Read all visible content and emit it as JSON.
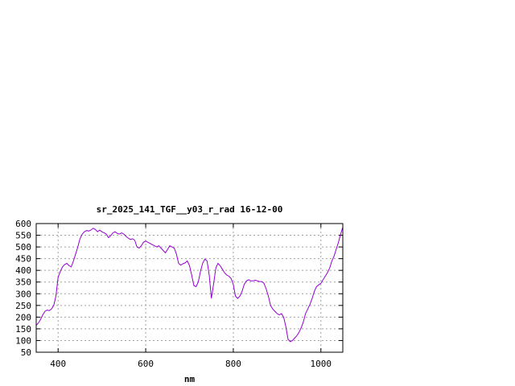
{
  "chart_data": {
    "type": "line",
    "title": "sr_2025_141_TGF__y03_r_rad 16-12-00",
    "xlabel": "nm",
    "ylabel": "",
    "xlim": [
      350,
      1050
    ],
    "ylim": [
      50,
      600
    ],
    "xticks": [
      400,
      600,
      800,
      1000
    ],
    "yticks": [
      50,
      100,
      150,
      200,
      250,
      300,
      350,
      400,
      450,
      500,
      550,
      600
    ],
    "grid": true,
    "series_color": "#9400d3",
    "series": [
      {
        "x": [
          350,
          355,
          360,
          365,
          370,
          375,
          380,
          385,
          390,
          395,
          400,
          405,
          410,
          415,
          420,
          425,
          430,
          435,
          440,
          445,
          450,
          455,
          460,
          465,
          470,
          475,
          480,
          485,
          490,
          495,
          500,
          505,
          510,
          515,
          520,
          525,
          530,
          535,
          540,
          545,
          550,
          555,
          560,
          565,
          570,
          575,
          580,
          585,
          590,
          595,
          600,
          605,
          610,
          615,
          620,
          625,
          630,
          635,
          640,
          645,
          650,
          655,
          660,
          665,
          670,
          675,
          680,
          685,
          690,
          695,
          700,
          705,
          710,
          715,
          720,
          725,
          730,
          735,
          740,
          745,
          750,
          755,
          760,
          765,
          770,
          775,
          780,
          785,
          790,
          795,
          800,
          805,
          810,
          815,
          820,
          825,
          830,
          835,
          840,
          845,
          850,
          855,
          860,
          865,
          870,
          875,
          880,
          885,
          890,
          895,
          900,
          905,
          910,
          915,
          920,
          925,
          930,
          935,
          940,
          945,
          950,
          955,
          960,
          965,
          970,
          975,
          980,
          985,
          990,
          995,
          1000,
          1005,
          1010,
          1015,
          1020,
          1025,
          1030,
          1035,
          1040,
          1045,
          1050
        ],
        "y": [
          165,
          175,
          190,
          210,
          225,
          230,
          228,
          235,
          250,
          290,
          370,
          395,
          415,
          425,
          430,
          420,
          415,
          440,
          470,
          500,
          535,
          555,
          565,
          570,
          568,
          572,
          580,
          575,
          565,
          572,
          565,
          560,
          555,
          540,
          548,
          560,
          565,
          558,
          555,
          560,
          555,
          545,
          538,
          532,
          535,
          528,
          500,
          495,
          505,
          520,
          525,
          520,
          515,
          510,
          505,
          500,
          505,
          495,
          485,
          475,
          490,
          505,
          500,
          495,
          470,
          430,
          422,
          428,
          432,
          440,
          420,
          380,
          335,
          330,
          350,
          395,
          430,
          448,
          440,
          380,
          280,
          340,
          410,
          430,
          420,
          405,
          390,
          380,
          375,
          365,
          340,
          290,
          280,
          290,
          310,
          340,
          355,
          360,
          355,
          355,
          358,
          355,
          352,
          352,
          345,
          320,
          290,
          250,
          235,
          225,
          215,
          210,
          215,
          200,
          160,
          105,
          95,
          100,
          110,
          120,
          135,
          155,
          180,
          215,
          235,
          255,
          280,
          310,
          330,
          338,
          345,
          360,
          375,
          390,
          410,
          440,
          460,
          490,
          520,
          555,
          585
        ]
      }
    ]
  }
}
